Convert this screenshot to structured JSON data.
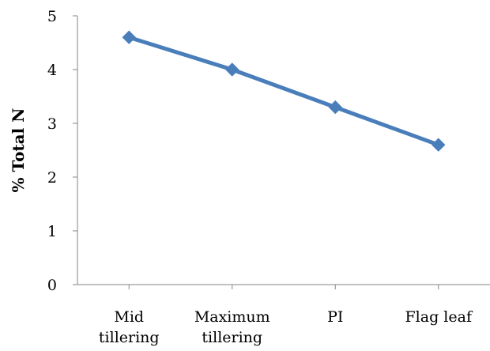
{
  "chart_data": {
    "type": "line",
    "categories": [
      [
        "Mid",
        "tillering"
      ],
      [
        "Maximum",
        "tillering"
      ],
      [
        "PI"
      ],
      [
        "Flag leaf"
      ]
    ],
    "series": [
      {
        "values": [
          4.6,
          4.0,
          3.3,
          2.6
        ],
        "color": "#4a7ebb",
        "marker": "diamond"
      }
    ],
    "title": "",
    "xlabel": "",
    "ylabel": "% Total N",
    "ylim": [
      0,
      5
    ],
    "yticks": [
      "0",
      "1",
      "2",
      "3",
      "4",
      "5"
    ],
    "grid": false,
    "legend": "none"
  }
}
